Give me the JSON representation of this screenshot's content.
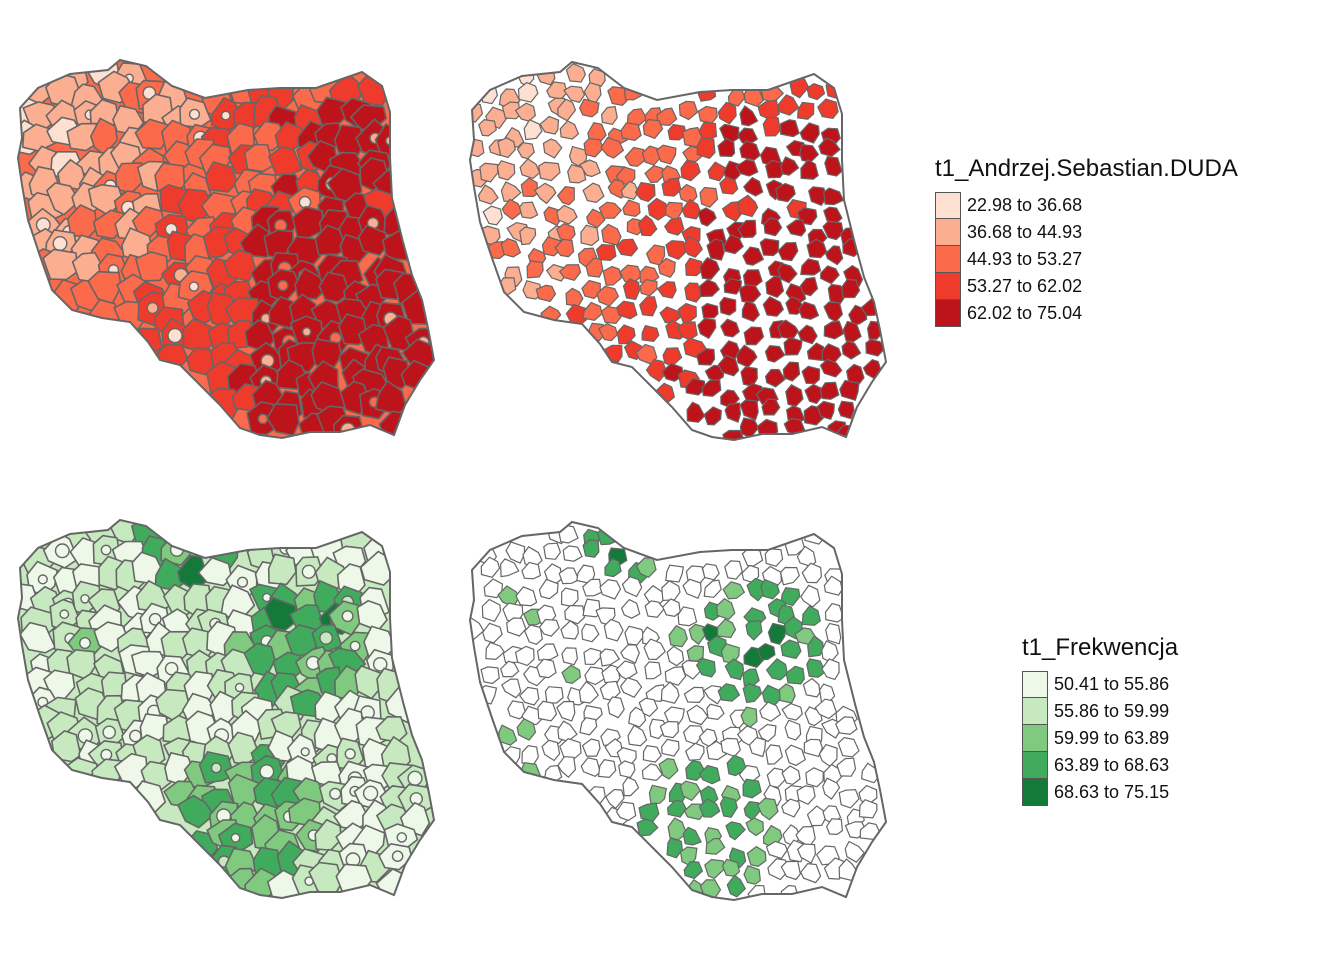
{
  "maps": [
    {
      "id": "duda-counties",
      "scheme": "duda",
      "style": "filled"
    },
    {
      "id": "duda-communes",
      "scheme": "duda",
      "style": "centers"
    },
    {
      "id": "turnout-counties",
      "scheme": "turnout",
      "style": "filled"
    },
    {
      "id": "turnout-communes",
      "scheme": "turnout",
      "style": "centers"
    }
  ],
  "legends": {
    "duda": {
      "title": "t1_Andrzej.Sebastian.DUDA",
      "classes": [
        {
          "label": "22.98 to 36.68",
          "color": "#fee0d2"
        },
        {
          "label": "36.68 to 44.93",
          "color": "#fcae91"
        },
        {
          "label": "44.93 to 53.27",
          "color": "#fb6a4a"
        },
        {
          "label": "53.27 to 62.02",
          "color": "#ef3b2c"
        },
        {
          "label": "62.02 to 75.04",
          "color": "#bd141b"
        }
      ]
    },
    "turnout": {
      "title": "t1_Frekwencja",
      "classes": [
        {
          "label": "50.41 to 55.86",
          "color": "#edf8e9"
        },
        {
          "label": "55.86 to 59.99",
          "color": "#c7e9c0"
        },
        {
          "label": "59.99 to 63.89",
          "color": "#7fca7f"
        },
        {
          "label": "63.89 to 68.63",
          "color": "#41ab5d"
        },
        {
          "label": "68.63 to 75.15",
          "color": "#137a3a"
        }
      ]
    }
  },
  "style": {
    "border_color": "#666666",
    "background": "#ffffff"
  }
}
